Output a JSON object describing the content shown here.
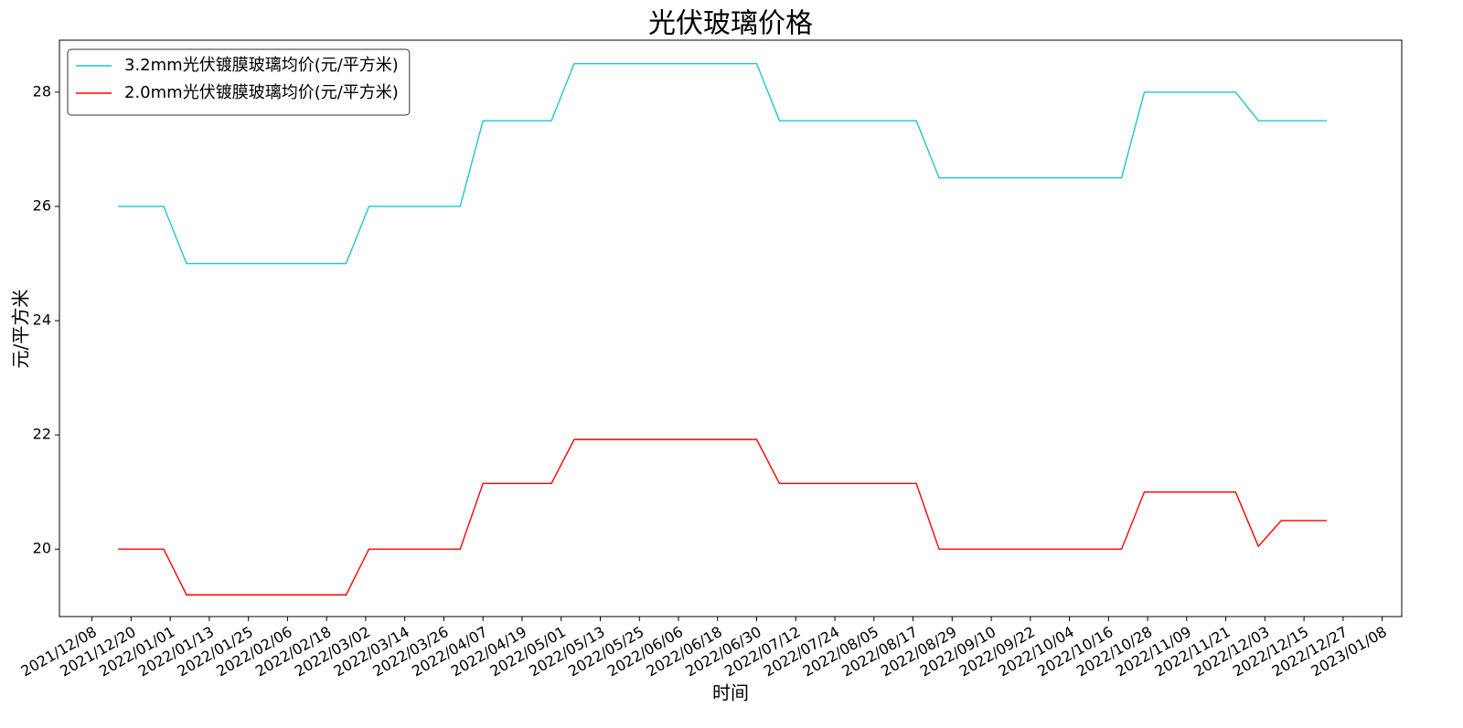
{
  "chart_data": {
    "type": "line",
    "title": "光伏玻璃价格",
    "xlabel": "时间",
    "ylabel": "元/平方米",
    "x": [
      "2021/12/16",
      "2021/12/23",
      "2021/12/30",
      "2022/01/06",
      "2022/01/13",
      "2022/01/20",
      "2022/01/27",
      "2022/02/03",
      "2022/02/10",
      "2022/02/17",
      "2022/02/24",
      "2022/03/03",
      "2022/03/10",
      "2022/03/17",
      "2022/03/24",
      "2022/03/31",
      "2022/04/07",
      "2022/04/14",
      "2022/04/21",
      "2022/04/28",
      "2022/05/05",
      "2022/05/12",
      "2022/05/19",
      "2022/05/26",
      "2022/06/02",
      "2022/06/09",
      "2022/06/16",
      "2022/06/23",
      "2022/06/30",
      "2022/07/07",
      "2022/07/14",
      "2022/07/21",
      "2022/07/28",
      "2022/08/04",
      "2022/08/11",
      "2022/08/18",
      "2022/08/25",
      "2022/09/01",
      "2022/09/08",
      "2022/09/15",
      "2022/09/22",
      "2022/09/29",
      "2022/10/06",
      "2022/10/13",
      "2022/10/20",
      "2022/10/27",
      "2022/11/03",
      "2022/11/10",
      "2022/11/17",
      "2022/11/24",
      "2022/12/01",
      "2022/12/08",
      "2022/12/15",
      "2022/12/22"
    ],
    "series": [
      {
        "name": "3.2mm光伏镀膜玻璃均价(元/平方米)",
        "color": "#1cc7d0",
        "values": [
          26,
          26,
          26,
          25,
          25,
          25,
          25,
          25,
          25,
          25,
          25,
          26,
          26,
          26,
          26,
          26,
          27.5,
          27.5,
          27.5,
          27.5,
          28.5,
          28.5,
          28.5,
          28.5,
          28.5,
          28.5,
          28.5,
          28.5,
          28.5,
          27.5,
          27.5,
          27.5,
          27.5,
          27.5,
          27.5,
          27.5,
          26.5,
          26.5,
          26.5,
          26.5,
          26.5,
          26.5,
          26.5,
          26.5,
          26.5,
          28,
          28,
          28,
          28,
          28,
          27.5,
          27.5,
          27.5,
          27.5
        ]
      },
      {
        "name": "2.0mm光伏镀膜玻璃均价(元/平方米)",
        "color": "#ff0000",
        "values": [
          20,
          20,
          20,
          19.2,
          19.2,
          19.2,
          19.2,
          19.2,
          19.2,
          19.2,
          19.2,
          20,
          20,
          20,
          20,
          20,
          21.15,
          21.15,
          21.15,
          21.15,
          21.92,
          21.92,
          21.92,
          21.92,
          21.92,
          21.92,
          21.92,
          21.92,
          21.92,
          21.15,
          21.15,
          21.15,
          21.15,
          21.15,
          21.15,
          21.15,
          20,
          20,
          20,
          20,
          20,
          20,
          20,
          20,
          20,
          21,
          21,
          21,
          21,
          21,
          20.05,
          20.5,
          20.5,
          20.5
        ]
      }
    ],
    "xlim": [
      "2021/11/28",
      "2023/01/14"
    ],
    "xticks": [
      "2021/12/08",
      "2021/12/20",
      "2022/01/01",
      "2022/01/13",
      "2022/01/25",
      "2022/02/06",
      "2022/02/18",
      "2022/03/02",
      "2022/03/14",
      "2022/03/26",
      "2022/04/07",
      "2022/04/19",
      "2022/05/01",
      "2022/05/13",
      "2022/05/25",
      "2022/06/06",
      "2022/06/18",
      "2022/06/30",
      "2022/07/12",
      "2022/07/24",
      "2022/08/05",
      "2022/08/17",
      "2022/08/29",
      "2022/09/10",
      "2022/09/22",
      "2022/10/04",
      "2022/10/16",
      "2022/10/28",
      "2022/11/09",
      "2022/11/21",
      "2022/12/03",
      "2022/12/15",
      "2022/12/27",
      "2023/01/08"
    ],
    "ylim": [
      18.82,
      28.91
    ],
    "yticks": [
      20,
      22,
      24,
      26,
      28
    ],
    "grid": false,
    "legend": "upper left"
  }
}
